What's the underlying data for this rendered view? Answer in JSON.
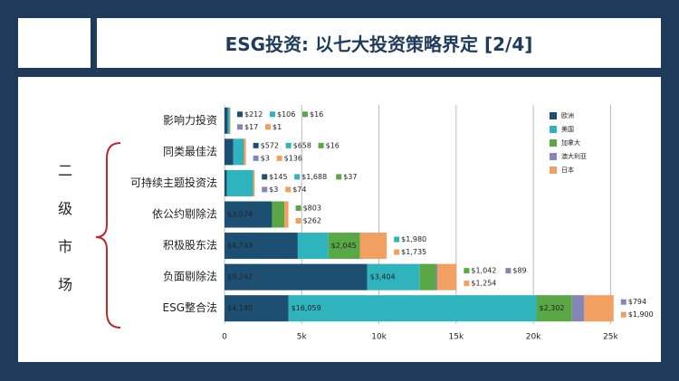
{
  "header": {
    "title": "ESG投资: 以七大投资策略界定 [2/4]"
  },
  "side_label": "二级市场",
  "chart_data": {
    "type": "bar",
    "orientation": "horizontal",
    "stacked": true,
    "categories": [
      "影响力投资",
      "同类最佳法",
      "可持续主题投资法",
      "依公约剔除法",
      "积极股东法",
      "负面剔除法",
      "ESG整合法"
    ],
    "series": [
      {
        "name": "欧洲",
        "color": "#1d4f73",
        "values": [
          212,
          572,
          145,
          3074,
          4743,
          9242,
          4140
        ],
        "value_labels": [
          "$212",
          "$572",
          "$145",
          "$3,074",
          "$4,743",
          "$9,242",
          "$4,140"
        ]
      },
      {
        "name": "美国",
        "color": "#2fb3bd",
        "values": [
          106,
          658,
          1688,
          null,
          1980,
          3404,
          16059
        ],
        "value_labels": [
          "$106",
          "$658",
          "$1,688",
          null,
          "$1,980",
          "$3,404",
          "$16,059"
        ]
      },
      {
        "name": "加拿大",
        "color": "#5aa845",
        "values": [
          16,
          16,
          37,
          803,
          2045,
          1042,
          2302
        ],
        "value_labels": [
          "$16",
          "$16",
          "$37",
          "$803",
          "$2,045",
          "$1,042",
          "$2,302"
        ]
      },
      {
        "name": "澳大利亚",
        "color": "#8586b8",
        "values": [
          17,
          3,
          3,
          null,
          null,
          89,
          794
        ],
        "value_labels": [
          "$17",
          "$3",
          "$3",
          null,
          null,
          "$89",
          "$794"
        ]
      },
      {
        "name": "日本",
        "color": "#f2a062",
        "values": [
          1,
          136,
          74,
          262,
          1735,
          1254,
          1900
        ],
        "value_labels": [
          "$1",
          "$136",
          "$74",
          "$262",
          "$1,735",
          "$1,254",
          "$1,900"
        ]
      }
    ],
    "xlim": [
      0,
      26500
    ],
    "xticks": [
      0,
      {
        "value": 5000,
        "label": "5k"
      },
      {
        "value": 10000,
        "label": "10k"
      },
      {
        "value": 15000,
        "label": "15k"
      },
      {
        "value": 20000,
        "label": "20k"
      },
      {
        "value": 25000,
        "label": "25k"
      }
    ],
    "grid": true,
    "legend": "upper right"
  }
}
